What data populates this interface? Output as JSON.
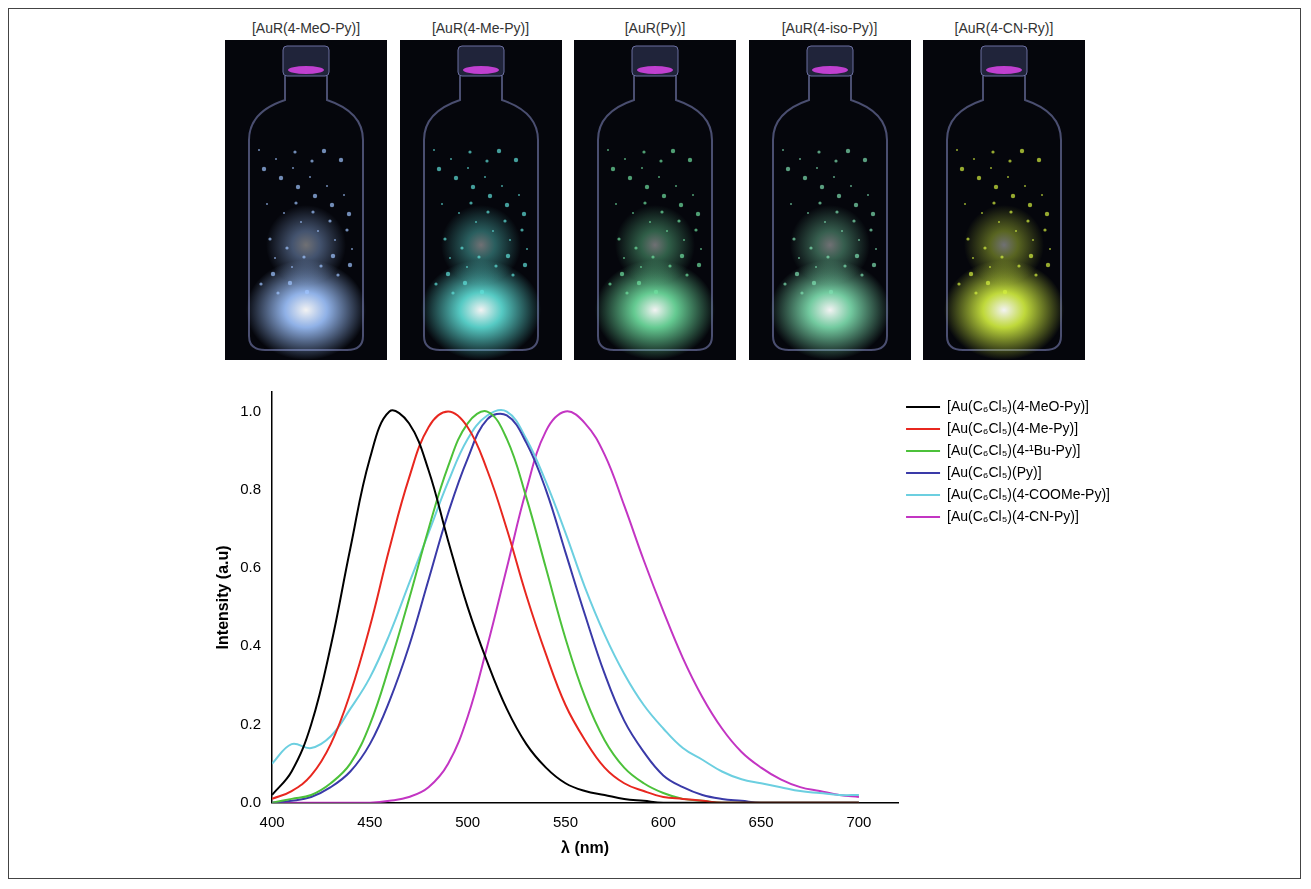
{
  "photos": {
    "labels": [
      "[AuR(4-MeO-Py)]",
      "[AuR(4-Me-Py)]",
      "[AuR(Py)]",
      "[AuR(4-iso-Py)]",
      "[AuR(4-CN-Ry)]"
    ]
  },
  "chart_data": {
    "type": "line",
    "x_label": "λ (nm)",
    "y_label": "Intensity (a.u)",
    "x": [
      400,
      410,
      420,
      430,
      440,
      450,
      460,
      470,
      480,
      490,
      500,
      510,
      520,
      530,
      540,
      550,
      560,
      570,
      580,
      590,
      600,
      610,
      620,
      630,
      640,
      650,
      660,
      670,
      680,
      690,
      700
    ],
    "xlim": [
      400,
      720
    ],
    "xticks": [
      400,
      450,
      500,
      550,
      600,
      650,
      700
    ],
    "ylim": [
      0,
      1.05
    ],
    "yticks": [
      {
        "value": 0,
        "label": "0.0"
      },
      {
        "value": 0.2,
        "label": "0.2"
      },
      {
        "value": 0.4,
        "label": "0.4"
      },
      {
        "value": 0.6,
        "label": "0.6"
      },
      {
        "value": 0.8,
        "label": "0.8"
      },
      {
        "value": 1,
        "label": "1.0"
      }
    ],
    "grid": false,
    "legend": "right",
    "series": [
      {
        "name": "[Au(C₆Cl₅)(4-MeO-Py)]",
        "color": "#000000",
        "values": [
          0.02,
          0.08,
          0.2,
          0.4,
          0.65,
          0.88,
          1.0,
          0.97,
          0.85,
          0.67,
          0.5,
          0.36,
          0.24,
          0.15,
          0.09,
          0.05,
          0.03,
          0.02,
          0.01,
          0.005,
          0,
          0,
          0,
          0,
          0,
          0,
          0,
          0,
          0,
          0,
          0
        ]
      },
      {
        "name": "[Au(C₆Cl₅)(4-Me-Py)]",
        "color": "#e8271f",
        "values": [
          0.01,
          0.03,
          0.07,
          0.15,
          0.28,
          0.45,
          0.65,
          0.83,
          0.96,
          1.0,
          0.96,
          0.85,
          0.7,
          0.53,
          0.38,
          0.25,
          0.16,
          0.09,
          0.05,
          0.03,
          0.015,
          0.01,
          0.005,
          0,
          0,
          0,
          0,
          0,
          0,
          0,
          0
        ]
      },
      {
        "name": "[Au(C₆Cl₅)(4-¹Bu-Py)]",
        "color": "#4cc13a",
        "values": [
          0,
          0.01,
          0.02,
          0.05,
          0.1,
          0.2,
          0.35,
          0.52,
          0.7,
          0.86,
          0.97,
          1.0,
          0.93,
          0.78,
          0.6,
          0.42,
          0.27,
          0.16,
          0.09,
          0.05,
          0.025,
          0.01,
          0.005,
          0,
          0,
          0,
          0,
          0,
          0,
          0,
          0
        ]
      },
      {
        "name": "[Au(C₆Cl₅)(Py)]",
        "color": "#3a3aa8",
        "values": [
          0,
          0.005,
          0.015,
          0.04,
          0.08,
          0.15,
          0.26,
          0.4,
          0.57,
          0.74,
          0.88,
          0.98,
          0.99,
          0.92,
          0.8,
          0.64,
          0.48,
          0.33,
          0.21,
          0.13,
          0.07,
          0.04,
          0.02,
          0.01,
          0.005,
          0,
          0,
          0,
          0,
          0,
          0
        ]
      },
      {
        "name": "[Au(C₆Cl₅)(4-COOMe-Py)]",
        "color": "#6ccfe0",
        "values": [
          0.1,
          0.15,
          0.14,
          0.17,
          0.24,
          0.32,
          0.43,
          0.56,
          0.69,
          0.82,
          0.93,
          0.99,
          1.0,
          0.93,
          0.82,
          0.69,
          0.55,
          0.43,
          0.33,
          0.25,
          0.19,
          0.14,
          0.11,
          0.08,
          0.06,
          0.05,
          0.04,
          0.03,
          0.025,
          0.02,
          0.02
        ]
      },
      {
        "name": "[Au(C₆Cl₅)(4-CN-Py)]",
        "color": "#c335c3",
        "values": [
          0,
          0,
          0,
          0,
          0,
          0,
          0.005,
          0.015,
          0.04,
          0.1,
          0.22,
          0.4,
          0.6,
          0.8,
          0.95,
          1.0,
          0.97,
          0.89,
          0.76,
          0.62,
          0.49,
          0.37,
          0.27,
          0.19,
          0.13,
          0.09,
          0.06,
          0.04,
          0.03,
          0.02,
          0.015
        ]
      }
    ]
  }
}
